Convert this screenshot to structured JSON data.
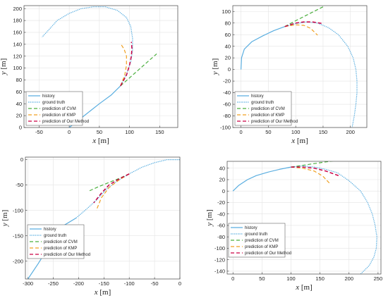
{
  "legend": [
    "history",
    "ground truth",
    "prediction of CVM",
    "prediction of KMP",
    "prediction of Our Method"
  ],
  "styles": {
    "history": {
      "color": "#5aaee0",
      "dash": "none"
    },
    "ground_truth": {
      "color": "#5aaee0",
      "dash": "1.4,1.1"
    },
    "cvm": {
      "color": "#4caf3f",
      "dash": "5,3"
    },
    "kmp": {
      "color": "#f0a020",
      "dash": "5,3"
    },
    "our": {
      "color": "#cc0044",
      "dash": "5,3"
    }
  },
  "axis_labels": {
    "x_var": "x",
    "x_unit": "[m]",
    "y_var": "y",
    "y_unit": "[m]"
  },
  "chart_data": [
    {
      "type": "line",
      "xlim": [
        -75,
        180
      ],
      "ylim": [
        0,
        205
      ],
      "xticks": [
        -50,
        0,
        50,
        100,
        150
      ],
      "yticks": [
        0,
        20,
        40,
        60,
        80,
        100,
        120,
        140,
        160,
        180,
        200
      ],
      "xlabel": "x [m]",
      "ylabel": "y [m]",
      "grid": true,
      "legend_position": "bottom-left",
      "series": [
        {
          "name": "history",
          "points": [
            [
              0,
              0
            ],
            [
              25,
              20
            ],
            [
              50,
              40
            ],
            [
              70,
              55
            ],
            [
              85,
              70
            ]
          ]
        },
        {
          "name": "ground truth",
          "points": [
            [
              85,
              70
            ],
            [
              95,
              90
            ],
            [
              102,
              110
            ],
            [
              105,
              130
            ],
            [
              105,
              150
            ],
            [
              102,
              170
            ],
            [
              95,
              185
            ],
            [
              80,
              197
            ],
            [
              60,
              203
            ],
            [
              40,
              203
            ],
            [
              20,
              200
            ],
            [
              0,
              192
            ],
            [
              -20,
              180
            ],
            [
              -35,
              163
            ],
            [
              -45,
              152
            ]
          ]
        },
        {
          "name": "prediction of CVM",
          "points": [
            [
              85,
              70
            ],
            [
              105,
              88
            ],
            [
              125,
              106
            ],
            [
              145,
              124
            ]
          ]
        },
        {
          "name": "prediction of KMP",
          "points": [
            [
              85,
              70
            ],
            [
              92,
              88
            ],
            [
              95,
              105
            ],
            [
              95,
              120
            ],
            [
              91,
              132
            ],
            [
              85,
              141
            ]
          ]
        },
        {
          "name": "prediction of Our Method",
          "points": [
            [
              85,
              70
            ],
            [
              95,
              88
            ],
            [
              100,
              105
            ],
            [
              103,
              120
            ],
            [
              104,
              133
            ],
            [
              103,
              144
            ]
          ]
        }
      ]
    },
    {
      "type": "line",
      "xlim": [
        -15,
        230
      ],
      "ylim": [
        -100,
        110
      ],
      "xticks": [
        0,
        50,
        100,
        150,
        200
      ],
      "yticks": [
        -100,
        -80,
        -60,
        -40,
        -20,
        0,
        20,
        40,
        60,
        80,
        100
      ],
      "xlabel": "x [m]",
      "ylabel": "y [m]",
      "grid": true,
      "legend_position": "bottom-left",
      "series": [
        {
          "name": "history",
          "points": [
            [
              0,
              0
            ],
            [
              1,
              20
            ],
            [
              6,
              35
            ],
            [
              20,
              48
            ],
            [
              40,
              58
            ],
            [
              60,
              67
            ],
            [
              80,
              74
            ]
          ]
        },
        {
          "name": "ground truth",
          "points": [
            [
              80,
              74
            ],
            [
              100,
              79
            ],
            [
              120,
              82
            ],
            [
              140,
              80
            ],
            [
              160,
              72
            ],
            [
              178,
              60
            ],
            [
              195,
              40
            ],
            [
              205,
              20
            ],
            [
              210,
              0
            ],
            [
              212,
              -20
            ],
            [
              212,
              -40
            ],
            [
              210,
              -60
            ],
            [
              207,
              -80
            ],
            [
              203,
              -100
            ]
          ]
        },
        {
          "name": "prediction of CVM",
          "points": [
            [
              80,
              74
            ],
            [
              100,
              84
            ],
            [
              125,
              96
            ],
            [
              150,
              108
            ]
          ]
        },
        {
          "name": "prediction of KMP",
          "points": [
            [
              80,
              74
            ],
            [
              100,
              77
            ],
            [
              115,
              76
            ],
            [
              127,
              71
            ],
            [
              140,
              59
            ]
          ]
        },
        {
          "name": "prediction of Our Method",
          "points": [
            [
              80,
              74
            ],
            [
              100,
              80
            ],
            [
              115,
              82
            ],
            [
              130,
              82
            ],
            [
              150,
              79
            ]
          ]
        }
      ]
    },
    {
      "type": "line",
      "xlim": [
        -305,
        0
      ],
      "ylim": [
        -235,
        5
      ],
      "xticks": [
        -300,
        -250,
        -200,
        -150,
        -100,
        -50,
        0
      ],
      "yticks": [
        -200,
        -150,
        -100,
        -50,
        0
      ],
      "xlabel": "x [m]",
      "ylabel": "y [m]",
      "grid": true,
      "legend_position": "top-left",
      "series": [
        {
          "name": "history",
          "points": [
            [
              -300,
              -235
            ],
            [
              -280,
              -205
            ],
            [
              -258,
              -170
            ],
            [
              -245,
              -148
            ],
            [
              -230,
              -130
            ],
            [
              -205,
              -115
            ]
          ]
        },
        {
          "name": "ground truth",
          "points": [
            [
              -205,
              -115
            ],
            [
              -185,
              -98
            ],
            [
              -165,
              -80
            ],
            [
              -145,
              -58
            ],
            [
              -125,
              -43
            ],
            [
              -100,
              -28
            ],
            [
              -75,
              -15
            ],
            [
              -50,
              -6
            ],
            [
              -25,
              0
            ],
            [
              0,
              0
            ]
          ]
        },
        {
          "name": "prediction of CVM",
          "points": [
            [
              -100,
              -28
            ],
            [
              -120,
              -37
            ],
            [
              -140,
              -45
            ],
            [
              -160,
              -53
            ],
            [
              -180,
              -62
            ]
          ]
        },
        {
          "name": "prediction of KMP",
          "points": [
            [
              -100,
              -28
            ],
            [
              -120,
              -40
            ],
            [
              -140,
              -55
            ],
            [
              -155,
              -75
            ],
            [
              -165,
              -100
            ]
          ]
        },
        {
          "name": "prediction of Our Method",
          "points": [
            [
              -100,
              -28
            ],
            [
              -120,
              -38
            ],
            [
              -140,
              -50
            ],
            [
              -155,
              -66
            ],
            [
              -170,
              -85
            ]
          ]
        }
      ]
    },
    {
      "type": "line",
      "xlim": [
        -10,
        255
      ],
      "ylim": [
        -145,
        52
      ],
      "xticks": [
        0,
        50,
        100,
        150,
        200,
        250
      ],
      "yticks": [
        -140,
        -120,
        -100,
        -80,
        -60,
        -40,
        -20,
        0,
        20,
        40
      ],
      "xlabel": "x [m]",
      "ylabel": "y [m]",
      "grid": true,
      "legend_position": "bottom-left",
      "series": [
        {
          "name": "history",
          "points": [
            [
              0,
              0
            ],
            [
              10,
              10
            ],
            [
              25,
              20
            ],
            [
              40,
              27
            ],
            [
              60,
              33
            ],
            [
              80,
              38
            ],
            [
              100,
              42
            ]
          ]
        },
        {
          "name": "ground truth",
          "points": [
            [
              100,
              42
            ],
            [
              120,
              44
            ],
            [
              140,
              42
            ],
            [
              160,
              38
            ],
            [
              180,
              32
            ],
            [
              200,
              18
            ],
            [
              220,
              0
            ],
            [
              232,
              -20
            ],
            [
              240,
              -40
            ],
            [
              245,
              -60
            ],
            [
              248,
              -80
            ],
            [
              247,
              -100
            ],
            [
              243,
              -115
            ],
            [
              235,
              -130
            ],
            [
              225,
              -140
            ],
            [
              220,
              -145
            ]
          ]
        },
        {
          "name": "prediction of CVM",
          "points": [
            [
              100,
              42
            ],
            [
              120,
              45
            ],
            [
              140,
              48
            ],
            [
              160,
              51
            ],
            [
              175,
              53
            ]
          ]
        },
        {
          "name": "prediction of KMP",
          "points": [
            [
              100,
              42
            ],
            [
              120,
              40
            ],
            [
              140,
              35
            ],
            [
              155,
              26
            ],
            [
              168,
              12
            ]
          ]
        },
        {
          "name": "prediction of Our Method",
          "points": [
            [
              100,
              42
            ],
            [
              120,
              42
            ],
            [
              140,
              40
            ],
            [
              160,
              35
            ],
            [
              182,
              27
            ]
          ]
        }
      ]
    }
  ]
}
